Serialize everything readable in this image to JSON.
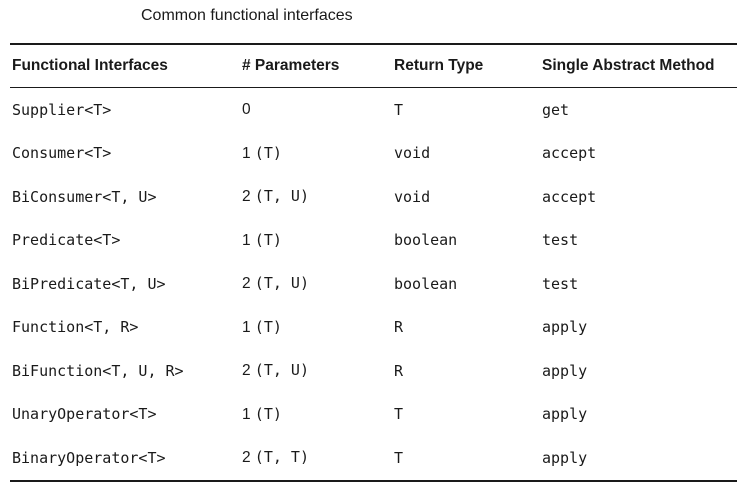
{
  "caption": "Common functional interfaces",
  "table": {
    "headers": [
      "Functional Interfaces",
      "# Parameters",
      "Return Type",
      "Single Abstract Method"
    ],
    "rows": [
      {
        "interface": "Supplier<T>",
        "params_count": "0",
        "params_types": "",
        "return_type": "T",
        "method": "get"
      },
      {
        "interface": "Consumer<T>",
        "params_count": "1",
        "params_types": "(T)",
        "return_type": "void",
        "method": "accept"
      },
      {
        "interface": "BiConsumer<T, U>",
        "params_count": "2",
        "params_types": "(T, U)",
        "return_type": "void",
        "method": "accept"
      },
      {
        "interface": "Predicate<T>",
        "params_count": "1",
        "params_types": "(T)",
        "return_type": "boolean",
        "method": "test"
      },
      {
        "interface": "BiPredicate<T, U>",
        "params_count": "2",
        "params_types": "(T, U)",
        "return_type": "boolean",
        "method": "test"
      },
      {
        "interface": "Function<T, R>",
        "params_count": "1",
        "params_types": "(T)",
        "return_type": "R",
        "method": "apply"
      },
      {
        "interface": "BiFunction<T, U, R>",
        "params_count": "2",
        "params_types": "(T, U)",
        "return_type": "R",
        "method": "apply"
      },
      {
        "interface": "UnaryOperator<T>",
        "params_count": "1",
        "params_types": "(T)",
        "return_type": "T",
        "method": "apply"
      },
      {
        "interface": "BinaryOperator<T>",
        "params_count": "2",
        "params_types": "(T, T)",
        "return_type": "T",
        "method": "apply"
      }
    ]
  }
}
